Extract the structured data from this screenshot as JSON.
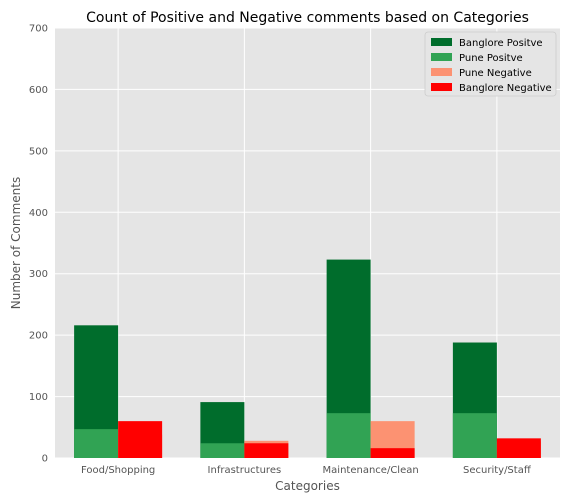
{
  "chart_data": {
    "type": "bar",
    "title": "Count of Positive and Negative comments based on Categories",
    "xlabel": "Categories",
    "ylabel": "Number of Comments",
    "ylim": [
      0,
      700
    ],
    "yticks": [
      0,
      100,
      200,
      300,
      400,
      500,
      600,
      700
    ],
    "categories": [
      "Food/Shopping",
      "Infrastructures",
      "Maintenance/Clean",
      "Security/Staff"
    ],
    "grid": true,
    "legend_position": "top-right",
    "series": [
      {
        "name": "Banglore Positve",
        "group": "positive",
        "color": "#006d2c",
        "values": [
          216,
          91,
          323,
          188
        ]
      },
      {
        "name": "Pune Positve",
        "group": "positive",
        "color": "#31a354",
        "values": [
          47,
          24,
          73,
          73
        ]
      },
      {
        "name": "Pune Negative",
        "group": "negative",
        "color": "#fc9272",
        "values": [
          38,
          28,
          60,
          27
        ]
      },
      {
        "name": "Banglore Negative",
        "group": "negative",
        "color": "#ff0000",
        "values": [
          60,
          24,
          16,
          32
        ]
      }
    ]
  }
}
